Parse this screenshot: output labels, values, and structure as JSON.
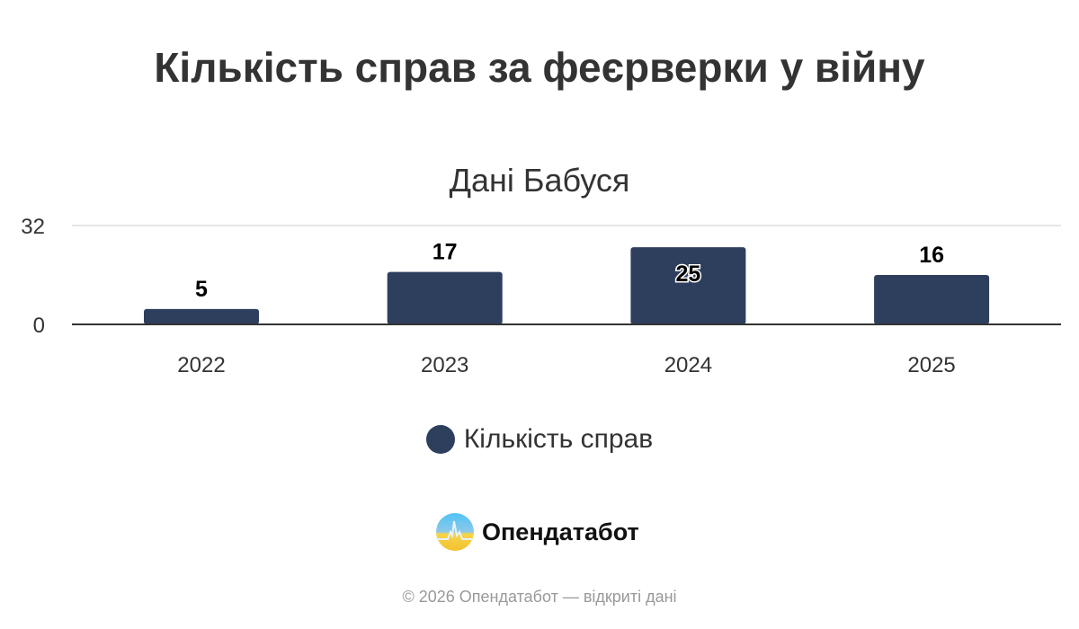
{
  "chart_data": {
    "type": "bar",
    "title": "Кількість справ за феєрверки у війну",
    "subtitle": "Дані Бабуся",
    "categories": [
      "2022",
      "2023",
      "2024",
      "2025"
    ],
    "series": [
      {
        "name": "Кількість справ",
        "values": [
          5,
          17,
          25,
          16
        ],
        "color": "#2e3f5e"
      }
    ],
    "ylim": [
      0,
      32
    ],
    "yticks": [
      "0",
      "32"
    ],
    "grid": true,
    "legend": "bottom"
  },
  "branding": {
    "logo": "Опендатабот",
    "footer": "© 2026 Опендатабот — відкриті дані"
  }
}
